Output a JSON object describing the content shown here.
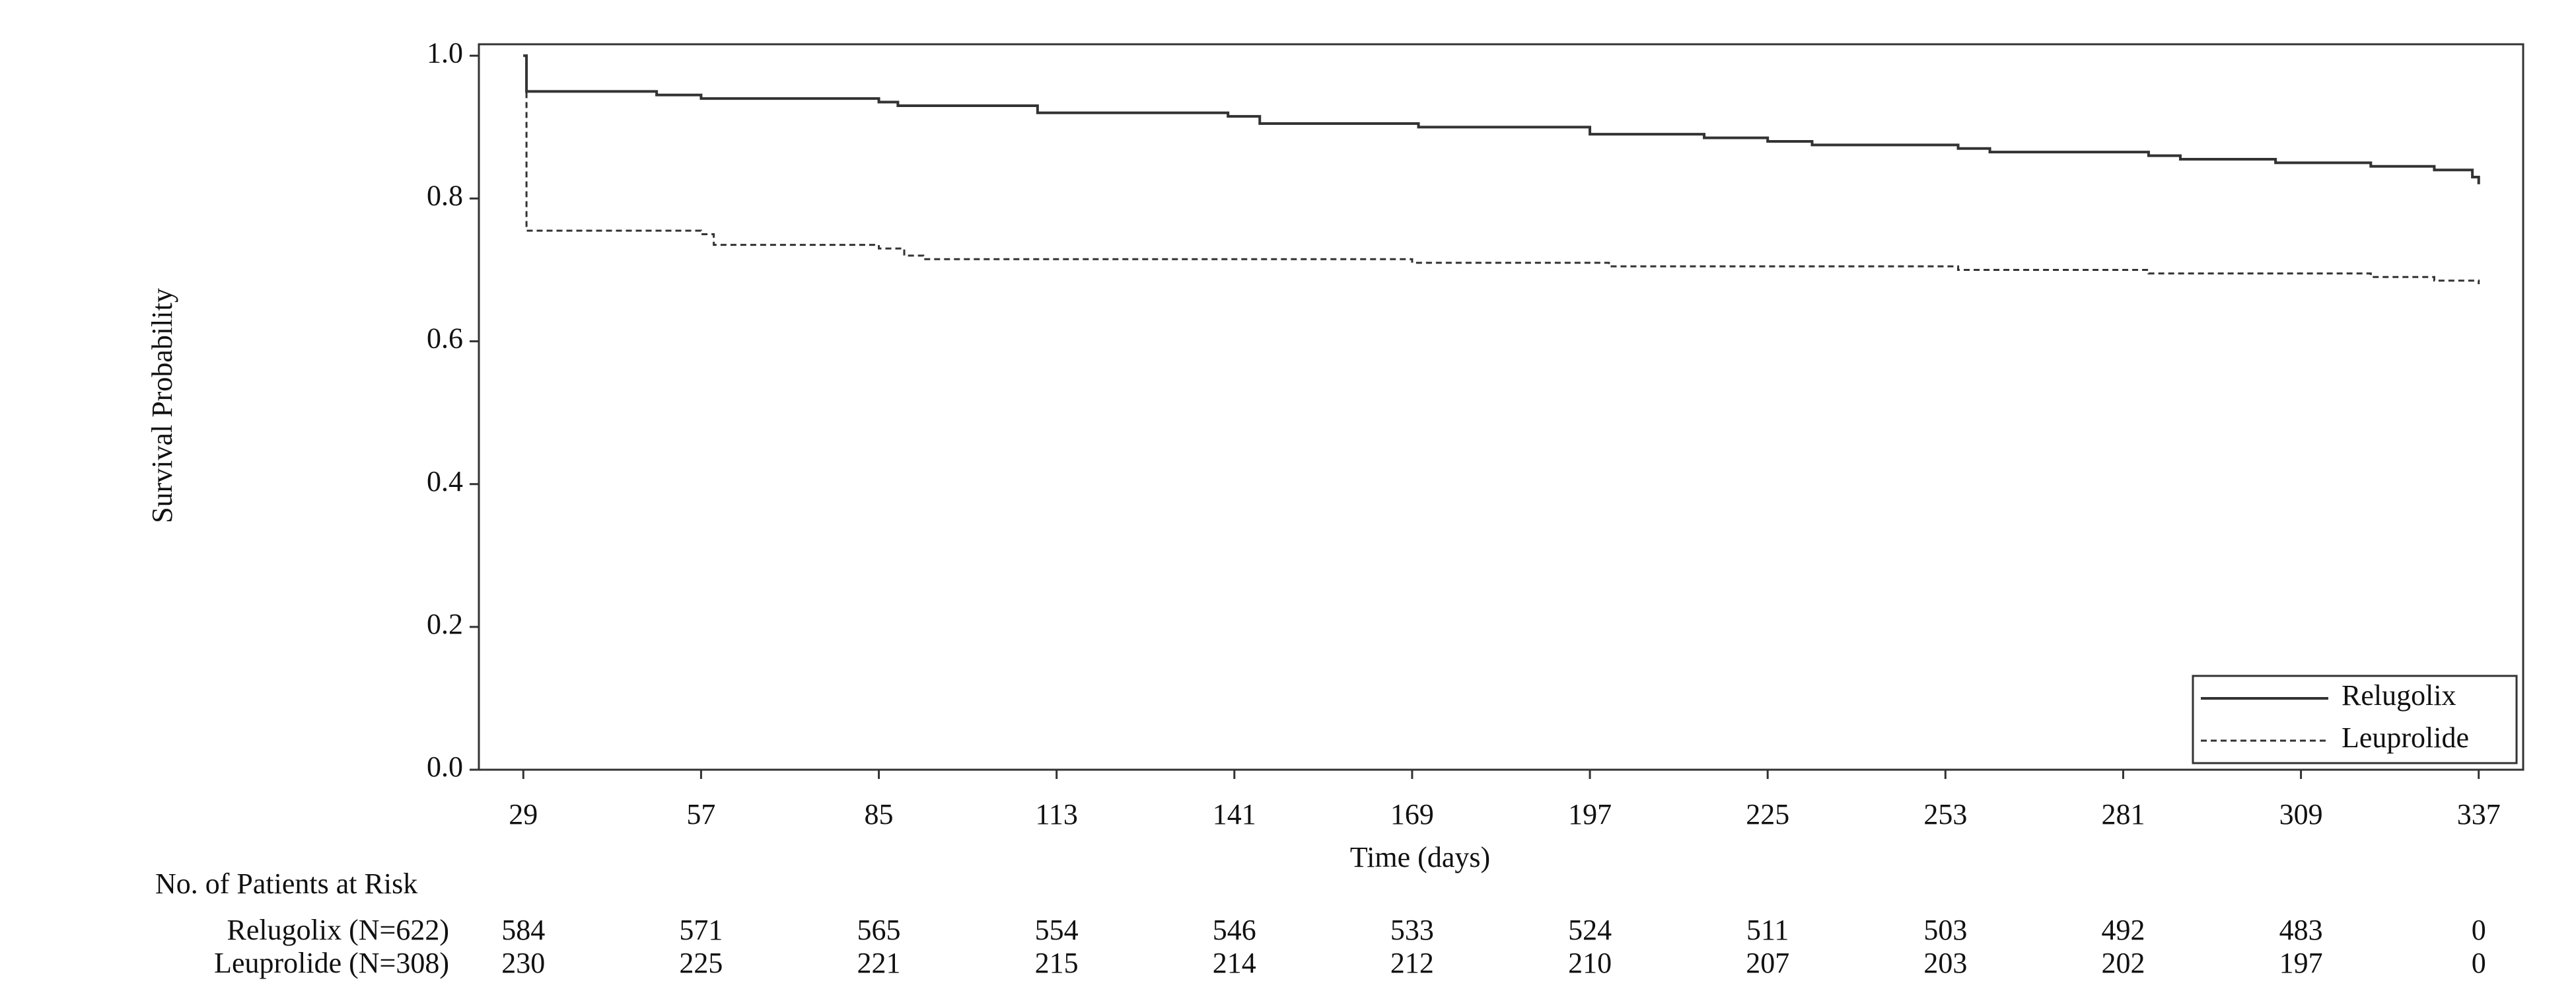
{
  "chart_data": {
    "type": "step",
    "y_label": "Survival Probability",
    "x_label": "Time (days)",
    "xlim": [
      22,
      344
    ],
    "ylim": [
      0,
      1.016
    ],
    "xticks": [
      29,
      57,
      85,
      113,
      141,
      169,
      197,
      225,
      253,
      281,
      309,
      337
    ],
    "yticks": [
      {
        "value": 0,
        "label": "0.0"
      },
      {
        "value": 0.2,
        "label": "0.2"
      },
      {
        "value": 0.4,
        "label": "0.4"
      },
      {
        "value": 0.6,
        "label": "0.6"
      },
      {
        "value": 0.8,
        "label": "0.8"
      },
      {
        "value": 1,
        "label": "1.0"
      }
    ],
    "legend": "lower right",
    "series": [
      {
        "name": "Relugolix",
        "color": "#333333",
        "dash": false,
        "x": [
          29,
          29.5,
          50,
          57,
          85,
          88,
          110,
          140,
          145,
          170,
          197,
          215,
          225,
          232,
          255,
          260,
          285,
          290,
          305,
          320,
          330,
          336,
          337
        ],
        "values": [
          1,
          0.95,
          0.945,
          0.94,
          0.935,
          0.93,
          0.92,
          0.915,
          0.905,
          0.9,
          0.89,
          0.885,
          0.88,
          0.875,
          0.87,
          0.865,
          0.86,
          0.855,
          0.85,
          0.845,
          0.84,
          0.83,
          0.82
        ]
      },
      {
        "name": "Leuprolide",
        "color": "#333333",
        "dash": true,
        "x": [
          29,
          29.5,
          57,
          59,
          85,
          89,
          92,
          169,
          200,
          255,
          285,
          320,
          330,
          337
        ],
        "values": [
          1,
          0.755,
          0.75,
          0.735,
          0.73,
          0.72,
          0.715,
          0.71,
          0.705,
          0.7,
          0.695,
          0.69,
          0.685,
          0.68
        ]
      }
    ],
    "risk_table": {
      "title": "No. of Patients at Risk",
      "rows": [
        {
          "label": "Relugolix (N=622)",
          "counts": [
            584,
            571,
            565,
            554,
            546,
            533,
            524,
            511,
            503,
            492,
            483,
            0
          ]
        },
        {
          "label": "Leuprolide (N=308)",
          "counts": [
            230,
            225,
            221,
            215,
            214,
            212,
            210,
            207,
            203,
            202,
            197,
            0
          ]
        }
      ]
    }
  }
}
